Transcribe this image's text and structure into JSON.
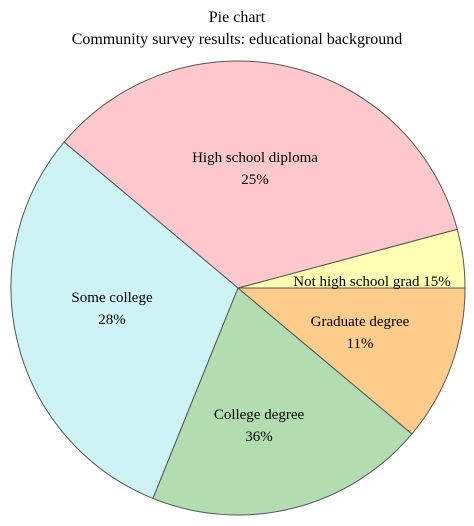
{
  "chart_data": {
    "type": "pie",
    "title": "Pie chart",
    "subtitle": "Community survey results: educational background",
    "slices": [
      {
        "label": "Not high school grad",
        "value": 15,
        "display": "15%",
        "color": "#ffffb3",
        "label_style": "inline"
      },
      {
        "label": "High school diploma",
        "value": 25,
        "display": "25%",
        "color": "#ffc9cc",
        "label_style": "stacked"
      },
      {
        "label": "Some college",
        "value": 28,
        "display": "28%",
        "color": "#cef3f5",
        "label_style": "stacked"
      },
      {
        "label": "College degree",
        "value": 36,
        "display": "36%",
        "color": "#b2ddb0",
        "label_style": "stacked"
      },
      {
        "label": "Graduate degree",
        "value": 11,
        "display": "11%",
        "color": "#ffcc8c",
        "label_style": "stacked"
      }
    ]
  }
}
